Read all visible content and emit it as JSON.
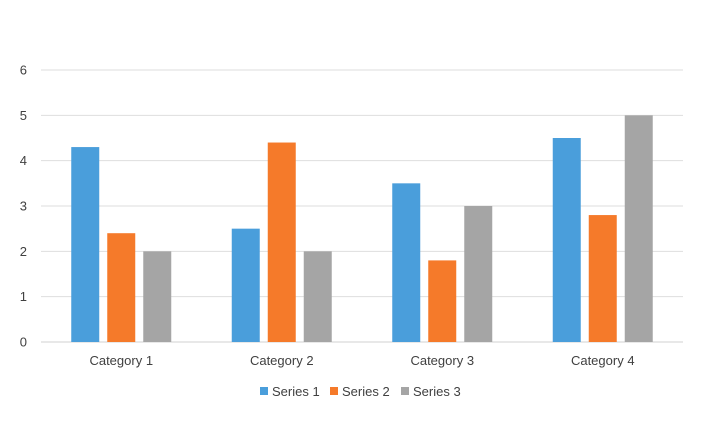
{
  "chart_data": {
    "type": "bar",
    "categories": [
      "Category 1",
      "Category 2",
      "Category 3",
      "Category 4"
    ],
    "series": [
      {
        "name": "Series 1",
        "values": [
          4.3,
          2.5,
          3.5,
          4.5
        ],
        "color": "#4a9edb"
      },
      {
        "name": "Series 2",
        "values": [
          2.4,
          4.4,
          1.8,
          2.8
        ],
        "color": "#f57a2a"
      },
      {
        "name": "Series 3",
        "values": [
          2,
          2,
          3,
          5
        ],
        "color": "#a5a5a5"
      }
    ],
    "y_ticks": [
      "0",
      "1",
      "2",
      "3",
      "4",
      "5",
      "6"
    ],
    "ylim": [
      0,
      6
    ],
    "grid": true,
    "legend_position": "bottom"
  }
}
